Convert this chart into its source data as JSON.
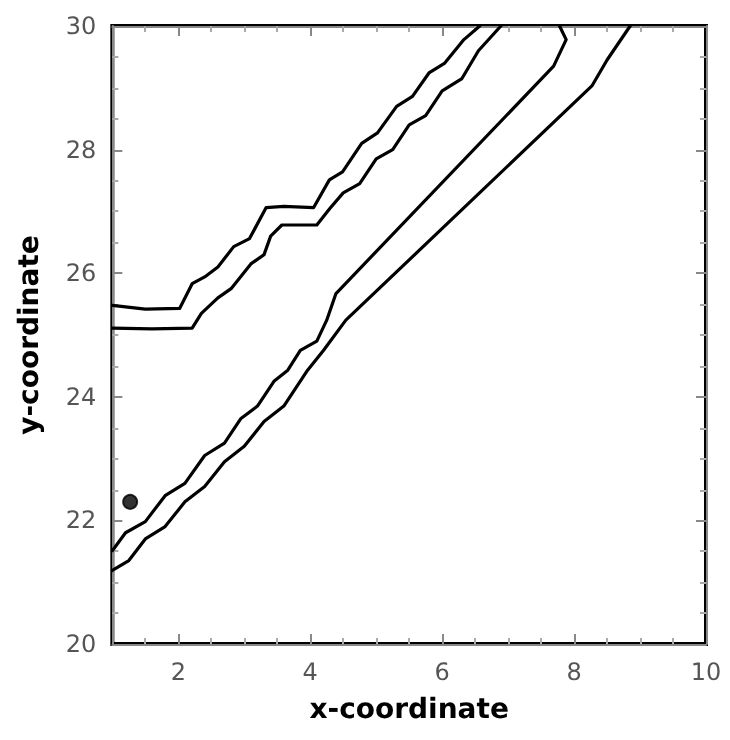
{
  "chart_data": {
    "type": "line",
    "xlabel": "x-coordinate",
    "ylabel": "y-coordinate",
    "xlim": [
      1,
      10
    ],
    "ylim": [
      20,
      30
    ],
    "xticks": [
      2,
      4,
      6,
      8,
      10
    ],
    "yticks": [
      20,
      22,
      24,
      26,
      28,
      30
    ],
    "grid": false,
    "line_style": "solid",
    "series": [
      {
        "color": "#000000",
        "x": [
          1,
          1.5,
          2.02,
          2.21,
          2.4,
          2.6,
          2.84,
          3.08,
          3.33,
          3.6,
          4.05,
          4.29,
          4.49,
          4.78,
          5.02,
          5.31,
          5.55,
          5.8,
          6.04,
          6.33,
          6.57
        ],
        "values": [
          25.48,
          25.42,
          25.43,
          25.83,
          25.94,
          26.1,
          26.43,
          26.56,
          27.06,
          27.08,
          27.06,
          27.51,
          27.64,
          28.1,
          28.27,
          28.7,
          28.86,
          29.24,
          29.4,
          29.78,
          30
        ]
      },
      {
        "color": "#000000",
        "x": [
          1,
          1.6,
          2.21,
          2.35,
          2.6,
          2.8,
          3.1,
          3.3,
          3.4,
          3.57,
          4.1,
          4.3,
          4.5,
          4.75,
          5,
          5.25,
          5.5,
          5.75,
          6,
          6.3,
          6.55,
          6.89
        ],
        "values": [
          25.11,
          25.1,
          25.11,
          25.35,
          25.6,
          25.75,
          26.15,
          26.3,
          26.6,
          26.78,
          26.78,
          27.05,
          27.3,
          27.45,
          27.85,
          28,
          28.4,
          28.55,
          28.95,
          29.15,
          29.6,
          30
        ]
      },
      {
        "color": "#000000",
        "x": [
          1,
          1.2,
          1.5,
          1.8,
          2.1,
          2.4,
          2.7,
          2.95,
          3.2,
          3.45,
          3.66,
          3.85,
          4.1,
          4.25,
          4.39,
          7.69,
          7.88,
          7.78
        ],
        "values": [
          21.51,
          21.8,
          21.98,
          22.4,
          22.6,
          23.05,
          23.25,
          23.65,
          23.85,
          24.25,
          24.43,
          24.75,
          24.9,
          25.24,
          25.67,
          29.35,
          29.78,
          30
        ]
      },
      {
        "color": "#000000",
        "x": [
          1,
          1.25,
          1.5,
          1.8,
          2.1,
          2.4,
          2.7,
          3,
          3.3,
          3.6,
          3.96,
          4.2,
          4.54,
          8.27,
          8.5,
          8.85
        ],
        "values": [
          21.19,
          21.35,
          21.7,
          21.9,
          22.3,
          22.55,
          22.95,
          23.2,
          23.6,
          23.85,
          24.43,
          24.75,
          25.24,
          29.03,
          29.45,
          30
        ]
      },
      {
        "type": "scatter",
        "color": "#000000",
        "x": [
          1.27
        ],
        "values": [
          22.3
        ]
      }
    ]
  }
}
